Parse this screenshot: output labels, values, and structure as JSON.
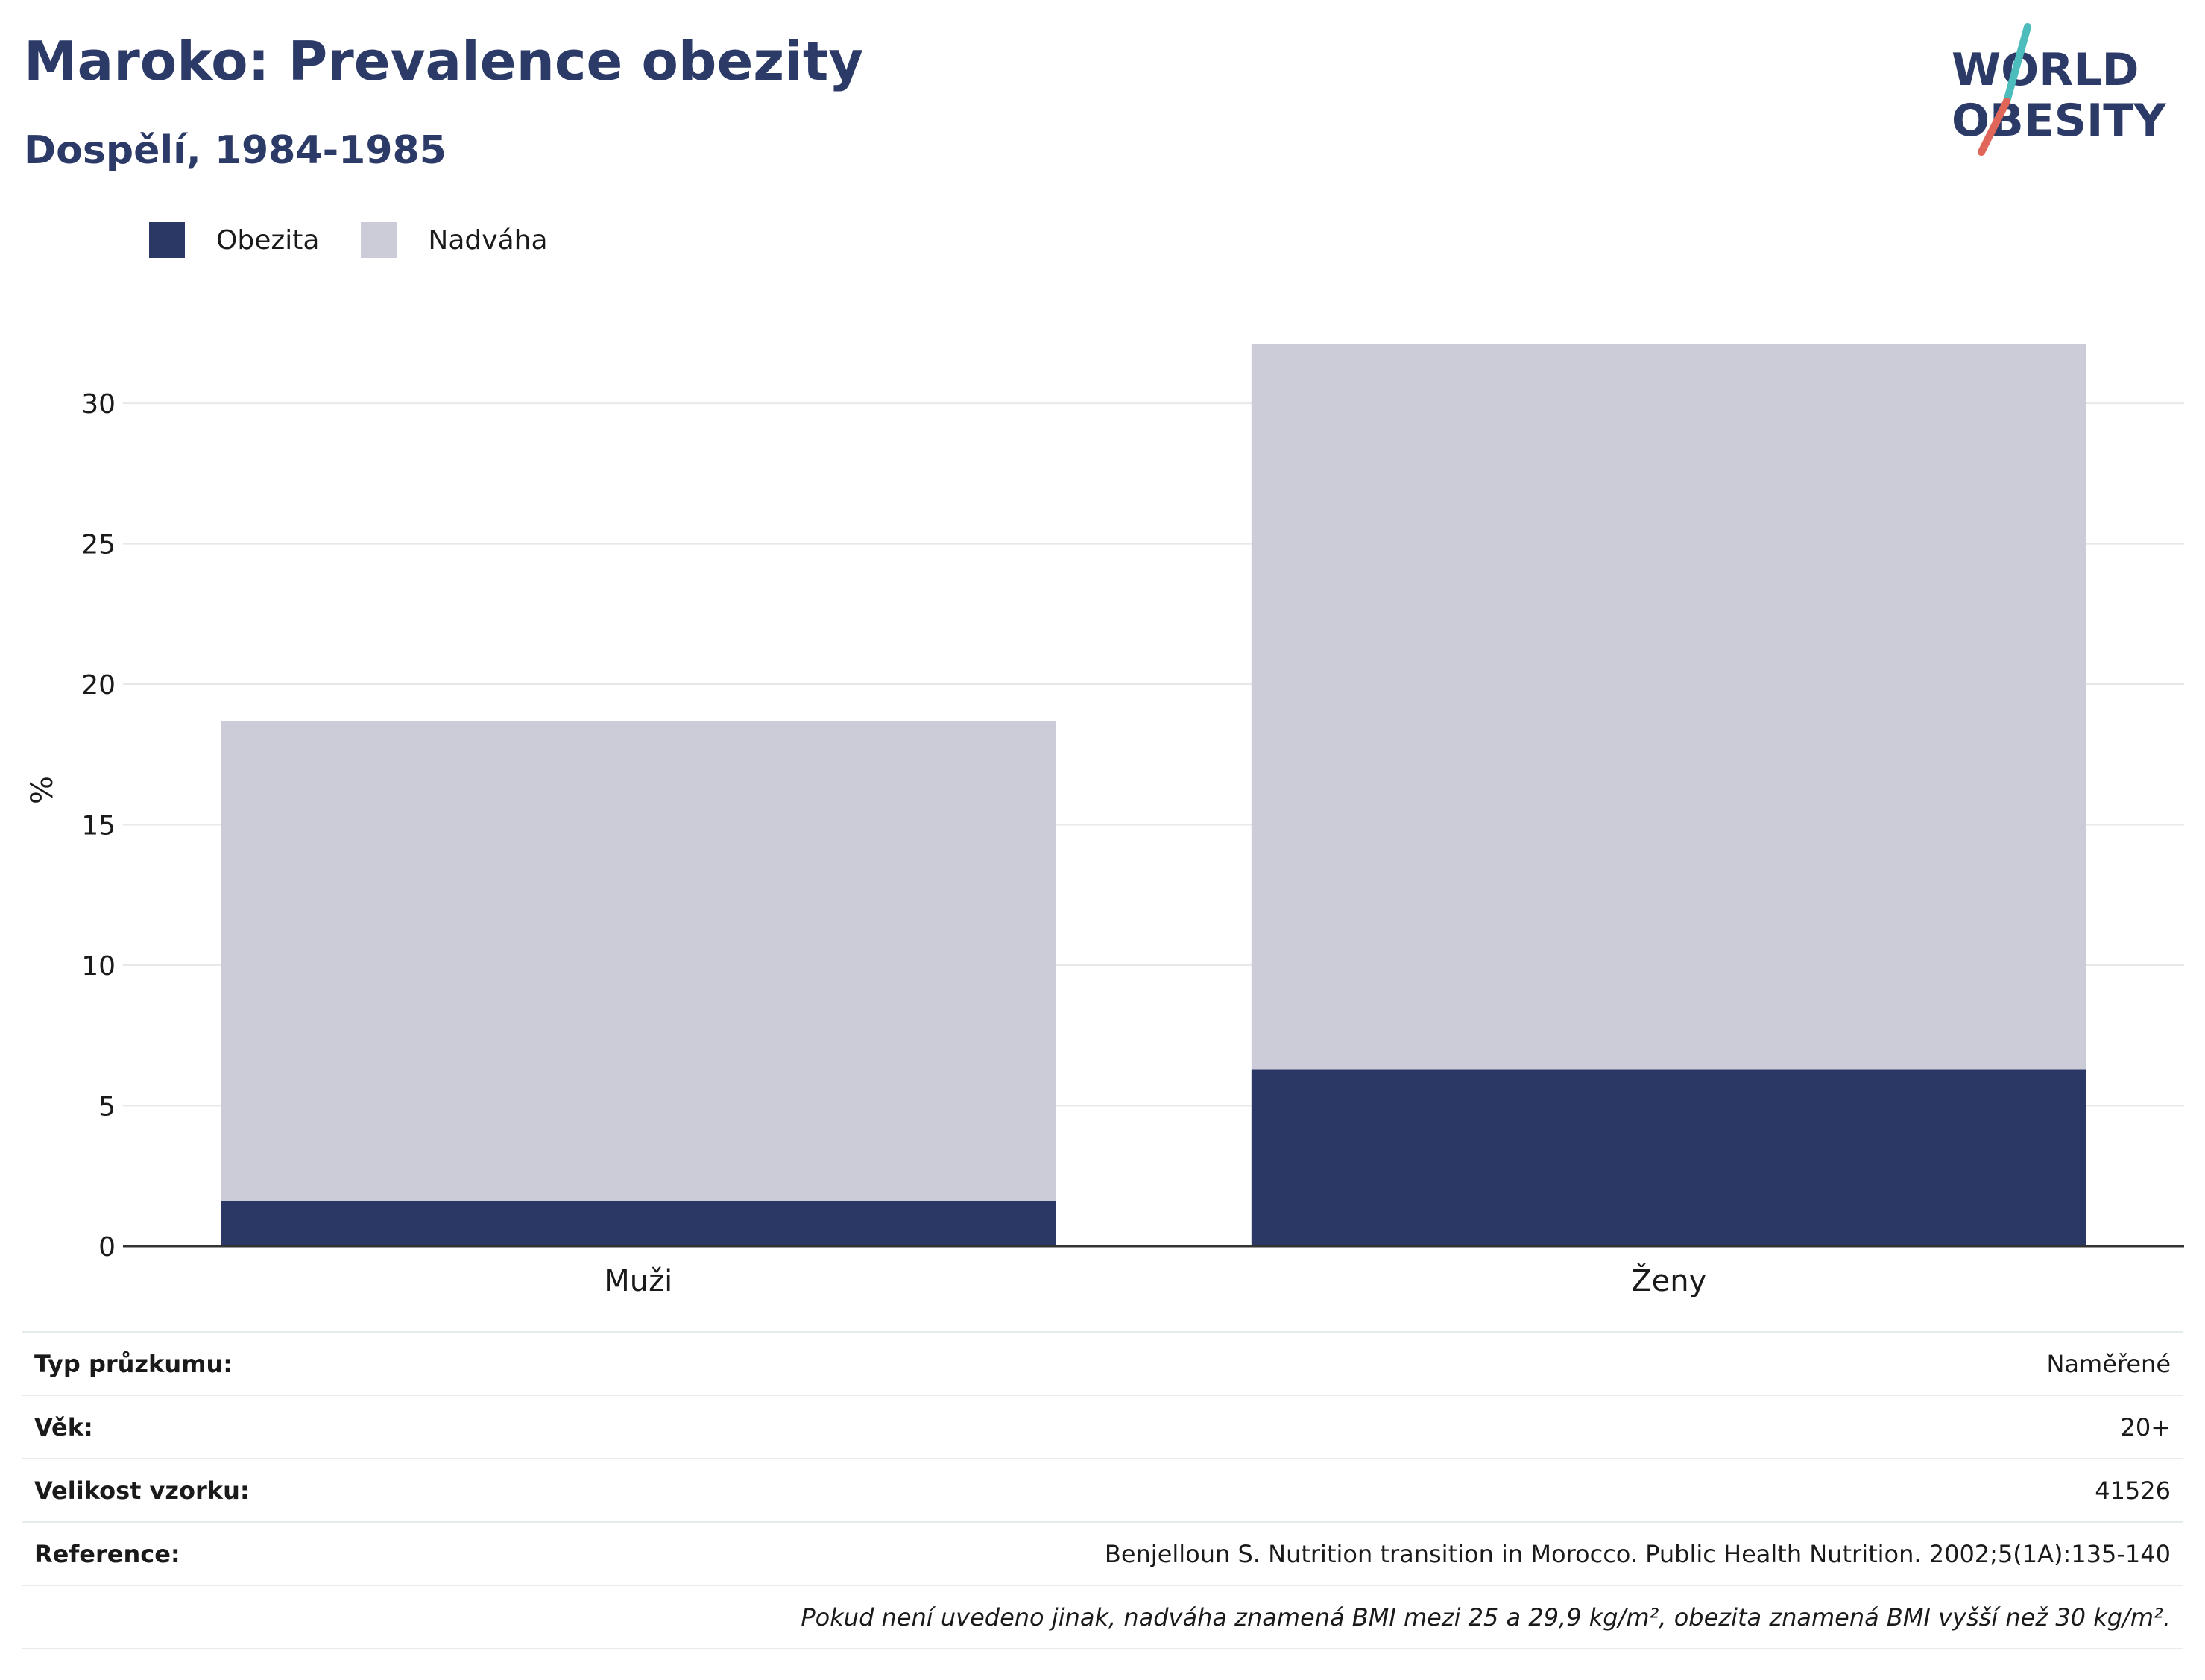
{
  "header": {
    "title": "Maroko: Prevalence obezity",
    "subtitle": "Dospělí, 1984-1985"
  },
  "logo": {
    "line1": "WORLD",
    "line2": "OBESITY",
    "colors": {
      "text": "#2b3a67",
      "slash_top": "#4cbcbc",
      "slash_bottom": "#e0665a"
    }
  },
  "legend": [
    {
      "label": "Obezita",
      "color": "#2b3765"
    },
    {
      "label": "Nadváha",
      "color": "#cbccd8"
    }
  ],
  "chart_data": {
    "type": "bar",
    "stacked": true,
    "categories": [
      "Muži",
      "Ženy"
    ],
    "series": [
      {
        "name": "Obezita",
        "color": "#2b3765",
        "values": [
          1.6,
          6.3
        ]
      },
      {
        "name": "Nadváha",
        "color": "#cbccd8",
        "values": [
          17.1,
          25.8
        ]
      }
    ],
    "ylabel": "%",
    "ylim": [
      0,
      33
    ],
    "yticks": [
      0,
      5,
      10,
      15,
      20,
      25,
      30
    ],
    "grid": true,
    "legend_position": "top-left"
  },
  "metadata": {
    "rows": [
      {
        "label": "Typ průzkumu:",
        "value": "Naměřené"
      },
      {
        "label": "Věk:",
        "value": "20+"
      },
      {
        "label": "Velikost vzorku:",
        "value": "41526"
      },
      {
        "label": "Reference:",
        "value": "Benjelloun S. Nutrition transition in Morocco. Public Health Nutrition. 2002;5(1A):135-140"
      }
    ],
    "note": "Pokud není uvedeno jinak, nadváha znamená BMI mezi 25 a 29,9 kg/m², obezita znamená BMI vyšší než 30 kg/m²."
  }
}
